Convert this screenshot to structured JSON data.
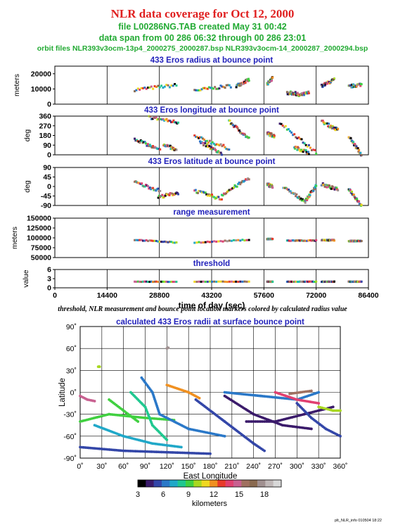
{
  "header": {
    "title": "NLR data coverage for Oct 12, 2000",
    "file_line": "file L00286NG.TAB created May 31 00:42",
    "span_line": "data span from 00 286 06:32 through 00 286 23:01",
    "orbit_line": "orbit files NLR393v3ocm-13p4_2000275_2000287.bsp NLR393v3ocm-14_2000287_2000294.bsp"
  },
  "caption": "threshold, NLR measurement and bounce point location markers colored by calculated radius value",
  "footer_stamp": "plt_NLR_info 010504 18:22",
  "colors": {
    "title": "#e02020",
    "subtitle": "#22aa33",
    "panel_title": "#2222bb",
    "grid": "#000000"
  },
  "chart_data": [
    {
      "id": "radius",
      "type": "scatter",
      "title": "433 Eros radius at bounce point",
      "ylabel": "meters",
      "xlim": [
        0,
        86400
      ],
      "ylim": [
        0,
        25000
      ],
      "yticks": [
        0,
        10000,
        20000
      ],
      "ytick_labels": [
        "0",
        "10000",
        "20000"
      ],
      "grid": "vertical lines at 14400-sec intervals",
      "segments": [
        {
          "x": [
            22000,
            33500
          ],
          "y": [
            9500,
            12500
          ]
        },
        {
          "x": [
            38500,
            48500
          ],
          "y": [
            9000,
            12000
          ]
        },
        {
          "x": [
            50000,
            53500
          ],
          "y": [
            12000,
            16000
          ]
        },
        {
          "x": [
            58500,
            60000
          ],
          "y": [
            13000,
            17000
          ]
        },
        {
          "x": [
            64000,
            67000
          ],
          "y": [
            7500,
            6800
          ]
        },
        {
          "x": [
            67000,
            70000
          ],
          "y": [
            5500,
            7500
          ]
        },
        {
          "x": [
            73500,
            77000
          ],
          "y": [
            12000,
            16000
          ]
        },
        {
          "x": [
            81000,
            84500
          ],
          "y": [
            11500,
            13000
          ]
        }
      ]
    },
    {
      "id": "longitude",
      "type": "scatter",
      "title": "433 Eros longitude at bounce point",
      "ylabel": "deg",
      "xlim": [
        0,
        86400
      ],
      "ylim": [
        0,
        360
      ],
      "yticks": [
        0,
        90,
        180,
        270,
        360
      ],
      "ytick_labels": [
        "0",
        "90",
        "180",
        "270",
        "360"
      ],
      "segments": [
        {
          "x": [
            22000,
            29000
          ],
          "y": [
            150,
            40
          ]
        },
        {
          "x": [
            26000,
            34000
          ],
          "y": [
            350,
            300
          ]
        },
        {
          "x": [
            30000,
            33500
          ],
          "y": [
            100,
            40
          ]
        },
        {
          "x": [
            38500,
            48000
          ],
          "y": [
            170,
            60
          ]
        },
        {
          "x": [
            40000,
            46000
          ],
          "y": [
            120,
            10
          ]
        },
        {
          "x": [
            48000,
            53500
          ],
          "y": [
            310,
            150
          ]
        },
        {
          "x": [
            58500,
            60500
          ],
          "y": [
            200,
            175
          ]
        },
        {
          "x": [
            62000,
            72000
          ],
          "y": [
            300,
            20
          ]
        },
        {
          "x": [
            66000,
            70000
          ],
          "y": [
            70,
            20
          ]
        },
        {
          "x": [
            73500,
            78000
          ],
          "y": [
            310,
            230
          ]
        },
        {
          "x": [
            81000,
            84500
          ],
          "y": [
            170,
            0
          ]
        }
      ]
    },
    {
      "id": "latitude",
      "type": "scatter",
      "title": "433 Eros latitude at bounce point",
      "ylabel": "deg",
      "xlim": [
        0,
        86400
      ],
      "ylim": [
        -90,
        90
      ],
      "yticks": [
        -90,
        -45,
        0,
        45,
        90
      ],
      "ytick_labels": [
        "-90",
        "-45",
        "0",
        "45",
        "90"
      ],
      "segments": [
        {
          "x": [
            22000,
            29000
          ],
          "y": [
            20,
            -20
          ]
        },
        {
          "x": [
            28500,
            34000
          ],
          "y": [
            -50,
            -30
          ]
        },
        {
          "x": [
            38500,
            46000
          ],
          "y": [
            -20,
            -60
          ]
        },
        {
          "x": [
            46000,
            53500
          ],
          "y": [
            -40,
            40
          ]
        },
        {
          "x": [
            58500,
            60000
          ],
          "y": [
            10,
            0
          ]
        },
        {
          "x": [
            63000,
            69000
          ],
          "y": [
            -5,
            -70
          ]
        },
        {
          "x": [
            69000,
            72000
          ],
          "y": [
            -70,
            5
          ]
        },
        {
          "x": [
            73500,
            78000
          ],
          "y": [
            10,
            -15
          ]
        },
        {
          "x": [
            81000,
            84500
          ],
          "y": [
            -10,
            -90
          ]
        }
      ]
    },
    {
      "id": "range",
      "type": "scatter",
      "title": "range measurement",
      "ylabel": "meters",
      "xlim": [
        0,
        86400
      ],
      "ylim": [
        50000,
        150000
      ],
      "yticks": [
        50000,
        75000,
        100000,
        125000,
        150000
      ],
      "ytick_labels": [
        "50000",
        "75000",
        "100000",
        "125000",
        "150000"
      ],
      "segments": [
        {
          "x": [
            22000,
            33500
          ],
          "y": [
            95000,
            88000
          ]
        },
        {
          "x": [
            38500,
            53500
          ],
          "y": [
            88000,
            95000
          ]
        },
        {
          "x": [
            58500,
            60000
          ],
          "y": [
            97000,
            97000
          ]
        },
        {
          "x": [
            64000,
            72000
          ],
          "y": [
            93000,
            93000
          ]
        },
        {
          "x": [
            73500,
            77000
          ],
          "y": [
            94000,
            94000
          ]
        },
        {
          "x": [
            81000,
            84500
          ],
          "y": [
            92000,
            92000
          ]
        }
      ]
    },
    {
      "id": "threshold",
      "type": "scatter",
      "title": "threshold",
      "ylabel": "value",
      "xlabel": "time of day (sec)",
      "xlim": [
        0,
        86400
      ],
      "ylim": [
        0,
        6
      ],
      "yticks": [
        0,
        3,
        6
      ],
      "ytick_labels": [
        "0",
        "3",
        "6"
      ],
      "xticks": [
        0,
        14400,
        28800,
        43200,
        57600,
        72000,
        86400
      ],
      "xtick_labels": [
        "0",
        "14400",
        "28800",
        "43200",
        "57600",
        "72000",
        "86400"
      ],
      "segments": [
        {
          "x": [
            22000,
            33500
          ],
          "y": [
            2,
            2
          ]
        },
        {
          "x": [
            38500,
            53500
          ],
          "y": [
            2,
            2
          ]
        },
        {
          "x": [
            58500,
            60000
          ],
          "y": [
            2,
            2
          ]
        },
        {
          "x": [
            64000,
            72000
          ],
          "y": [
            2,
            2
          ]
        },
        {
          "x": [
            73500,
            77000
          ],
          "y": [
            2,
            2
          ]
        },
        {
          "x": [
            81000,
            84500
          ],
          "y": [
            2,
            2
          ]
        }
      ]
    },
    {
      "id": "map",
      "type": "scatter",
      "title": "calculated 433 Eros radii at surface bounce point",
      "xlabel": "East Longitude",
      "ylabel": "Latitude",
      "xlim": [
        0,
        360
      ],
      "ylim": [
        -90,
        90
      ],
      "xticks": [
        0,
        30,
        60,
        90,
        120,
        150,
        180,
        210,
        240,
        270,
        300,
        330,
        360
      ],
      "xtick_labels": [
        "0˚",
        "30˚",
        "60˚",
        "90˚",
        "120˚",
        "150˚",
        "180˚",
        "210˚",
        "240˚",
        "270˚",
        "300˚",
        "330˚",
        "360˚"
      ],
      "yticks": [
        -90,
        -60,
        -30,
        0,
        30,
        60,
        90
      ],
      "ytick_labels": [
        "-90˚",
        "-60˚",
        "-30˚",
        "0˚",
        "30˚",
        "60˚",
        "90˚"
      ],
      "grid": true,
      "tracks": [
        {
          "points": [
            [
              0,
              -75
            ],
            [
              60,
              -80
            ],
            [
              120,
              -82
            ],
            [
              180,
              -84
            ]
          ],
          "radius_km": 5
        },
        {
          "points": [
            [
              20,
              -45
            ],
            [
              60,
              -60
            ],
            [
              100,
              -70
            ],
            [
              140,
              -75
            ]
          ],
          "radius_km": 7
        },
        {
          "points": [
            [
              0,
              -40
            ],
            [
              40,
              -30
            ],
            [
              90,
              -35
            ],
            [
              130,
              -38
            ]
          ],
          "radius_km": 9
        },
        {
          "points": [
            [
              85,
              20
            ],
            [
              100,
              0
            ],
            [
              110,
              -30
            ],
            [
              150,
              -50
            ],
            [
              200,
              -60
            ]
          ],
          "radius_km": 6
        },
        {
          "points": [
            [
              70,
              0
            ],
            [
              90,
              -20
            ],
            [
              100,
              -45
            ],
            [
              120,
              -65
            ]
          ],
          "radius_km": 8
        },
        {
          "points": [
            [
              120,
              10
            ],
            [
              150,
              0
            ],
            [
              165,
              -8
            ]
          ],
          "radius_km": 12
        },
        {
          "points": [
            [
              160,
              -10
            ],
            [
              200,
              -40
            ],
            [
              240,
              -70
            ],
            [
              255,
              -80
            ]
          ],
          "radius_km": 5
        },
        {
          "points": [
            [
              200,
              -5
            ],
            [
              240,
              -30
            ],
            [
              280,
              -45
            ],
            [
              320,
              -50
            ]
          ],
          "radius_km": 4
        },
        {
          "points": [
            [
              230,
              -40
            ],
            [
              270,
              -40
            ],
            [
              310,
              -30
            ],
            [
              350,
              -20
            ]
          ],
          "radius_km": 4
        },
        {
          "points": [
            [
              300,
              -15
            ],
            [
              320,
              -35
            ],
            [
              340,
              -50
            ],
            [
              360,
              -60
            ]
          ],
          "radius_km": 5
        },
        {
          "points": [
            [
              200,
              0
            ],
            [
              250,
              -5
            ],
            [
              300,
              -10
            ],
            [
              330,
              0
            ]
          ],
          "radius_km": 6
        },
        {
          "points": [
            [
              0,
              -5
            ],
            [
              10,
              -10
            ],
            [
              20,
              -12
            ]
          ],
          "radius_km": 15
        },
        {
          "points": [
            [
              270,
              0
            ],
            [
              300,
              -10
            ],
            [
              330,
              -15
            ]
          ],
          "radius_km": 14
        },
        {
          "points": [
            [
              330,
              -20
            ],
            [
              350,
              -25
            ],
            [
              360,
              -25
            ]
          ],
          "radius_km": 10
        },
        {
          "points": [
            [
              40,
              -10
            ],
            [
              60,
              -25
            ],
            [
              80,
              -40
            ]
          ],
          "radius_km": 9
        },
        {
          "points": [
            [
              290,
              -2
            ],
            [
              305,
              0
            ],
            [
              320,
              2
            ]
          ],
          "radius_km": 16
        },
        {
          "points": [
            [
              120,
              60
            ],
            [
              122,
              61
            ]
          ],
          "radius_km": 18
        },
        {
          "points": [
            [
              25,
              35
            ],
            [
              27,
              35
            ]
          ],
          "radius_km": 10
        }
      ]
    }
  ],
  "colorbar": {
    "label": "kilometers",
    "min": 3,
    "max": 20,
    "ticks": [
      3,
      6,
      9,
      12,
      15,
      18
    ],
    "tick_labels": [
      "3",
      "6",
      "9",
      "12",
      "15",
      "18"
    ],
    "colors": [
      "#000000",
      "#3a1a6a",
      "#3346a8",
      "#2a78c8",
      "#20a8c8",
      "#20c890",
      "#40d040",
      "#a8d820",
      "#f0d820",
      "#f09020",
      "#e83a2a",
      "#e04070",
      "#c86090",
      "#a07060",
      "#8a6a50",
      "#a09090",
      "#c0b8b8",
      "#d8d8d8"
    ]
  }
}
